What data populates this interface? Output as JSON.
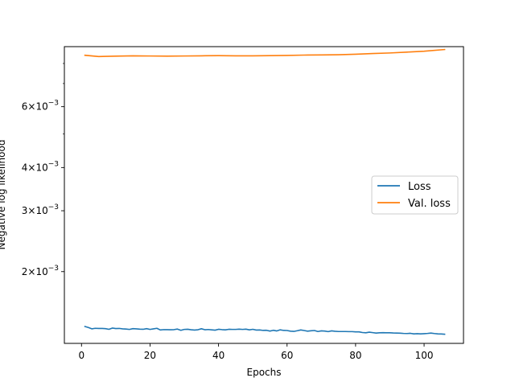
{
  "chart_data": {
    "type": "line",
    "xlabel": "Epochs",
    "ylabel": "Negative log likelihood",
    "yscale": "log",
    "xlim": [
      -5,
      111.5
    ],
    "ylim": [
      0.00124,
      0.00895
    ],
    "grid": false,
    "legend_position": "center-right",
    "x_ticks": [
      {
        "value": 0,
        "label": "0"
      },
      {
        "value": 20,
        "label": "20"
      },
      {
        "value": 40,
        "label": "40"
      },
      {
        "value": 60,
        "label": "60"
      },
      {
        "value": 80,
        "label": "80"
      },
      {
        "value": 100,
        "label": "100"
      }
    ],
    "y_major_ticks": [
      {
        "value": 0.002,
        "mantissa": "2",
        "exponent": "−3"
      },
      {
        "value": 0.003,
        "mantissa": "3",
        "exponent": "−3"
      },
      {
        "value": 0.004,
        "mantissa": "4",
        "exponent": "−3"
      },
      {
        "value": 0.006,
        "mantissa": "6",
        "exponent": "−3"
      }
    ],
    "y_minor_ticks": [
      0.005,
      0.007,
      0.008
    ],
    "tick_times_sign": "×",
    "tick_base": "10",
    "series": [
      {
        "name": "Loss",
        "color": "#1f77b4",
        "x": [
          1,
          2,
          3,
          4,
          5,
          6,
          7,
          8,
          9,
          10,
          11,
          12,
          13,
          14,
          15,
          16,
          17,
          18,
          19,
          20,
          21,
          22,
          23,
          24,
          25,
          26,
          27,
          28,
          29,
          30,
          31,
          32,
          33,
          34,
          35,
          36,
          37,
          38,
          39,
          40,
          41,
          42,
          43,
          44,
          45,
          46,
          47,
          48,
          49,
          50,
          51,
          52,
          53,
          54,
          55,
          56,
          57,
          58,
          59,
          60,
          61,
          62,
          63,
          64,
          65,
          66,
          67,
          68,
          69,
          70,
          71,
          72,
          73,
          74,
          75,
          76,
          77,
          78,
          79,
          80,
          81,
          82,
          83,
          84,
          85,
          86,
          87,
          88,
          89,
          90,
          91,
          92,
          93,
          94,
          95,
          96,
          97,
          98,
          99,
          100,
          101,
          102,
          103,
          104,
          105,
          106
        ],
        "y": [
          0.001388,
          0.001378,
          0.001366,
          0.001371,
          0.00137,
          0.00137,
          0.001368,
          0.001362,
          0.001373,
          0.001369,
          0.00137,
          0.001366,
          0.001364,
          0.001361,
          0.001368,
          0.001366,
          0.001363,
          0.001362,
          0.001368,
          0.001361,
          0.001366,
          0.001371,
          0.001356,
          0.001359,
          0.001359,
          0.001358,
          0.001359,
          0.001364,
          0.001353,
          0.001361,
          0.001362,
          0.001358,
          0.001355,
          0.001358,
          0.001367,
          0.001358,
          0.00136,
          0.001357,
          0.001354,
          0.001362,
          0.001359,
          0.001357,
          0.001362,
          0.001361,
          0.001361,
          0.001363,
          0.001361,
          0.001363,
          0.001357,
          0.001362,
          0.001355,
          0.001356,
          0.001352,
          0.001353,
          0.001346,
          0.001353,
          0.001347,
          0.001357,
          0.001352,
          0.001351,
          0.001345,
          0.001343,
          0.001349,
          0.001356,
          0.001351,
          0.001345,
          0.001349,
          0.001351,
          0.001342,
          0.001348,
          0.001346,
          0.001341,
          0.001348,
          0.001344,
          0.001342,
          0.001342,
          0.001342,
          0.001341,
          0.001341,
          0.001339,
          0.001339,
          0.001333,
          0.001331,
          0.001336,
          0.001332,
          0.001328,
          0.001331,
          0.001332,
          0.001331,
          0.001331,
          0.001329,
          0.001328,
          0.001327,
          0.001325,
          0.001324,
          0.001326,
          0.001321,
          0.001323,
          0.001321,
          0.001323,
          0.001325,
          0.001328,
          0.001324,
          0.001321,
          0.00132,
          0.001318
        ]
      },
      {
        "name": "Val. loss",
        "color": "#ff7f0e",
        "x": [
          1,
          5,
          10,
          15,
          20,
          25,
          30,
          35,
          40,
          45,
          50,
          55,
          60,
          65,
          70,
          75,
          80,
          85,
          90,
          95,
          100,
          106
        ],
        "y": [
          0.00845,
          0.00838,
          0.0084,
          0.00842,
          0.00841,
          0.0084,
          0.00841,
          0.00842,
          0.00843,
          0.00842,
          0.00842,
          0.00843,
          0.00844,
          0.00846,
          0.00847,
          0.00848,
          0.00851,
          0.00855,
          0.00858,
          0.00863,
          0.00868,
          0.00878
        ]
      }
    ]
  }
}
